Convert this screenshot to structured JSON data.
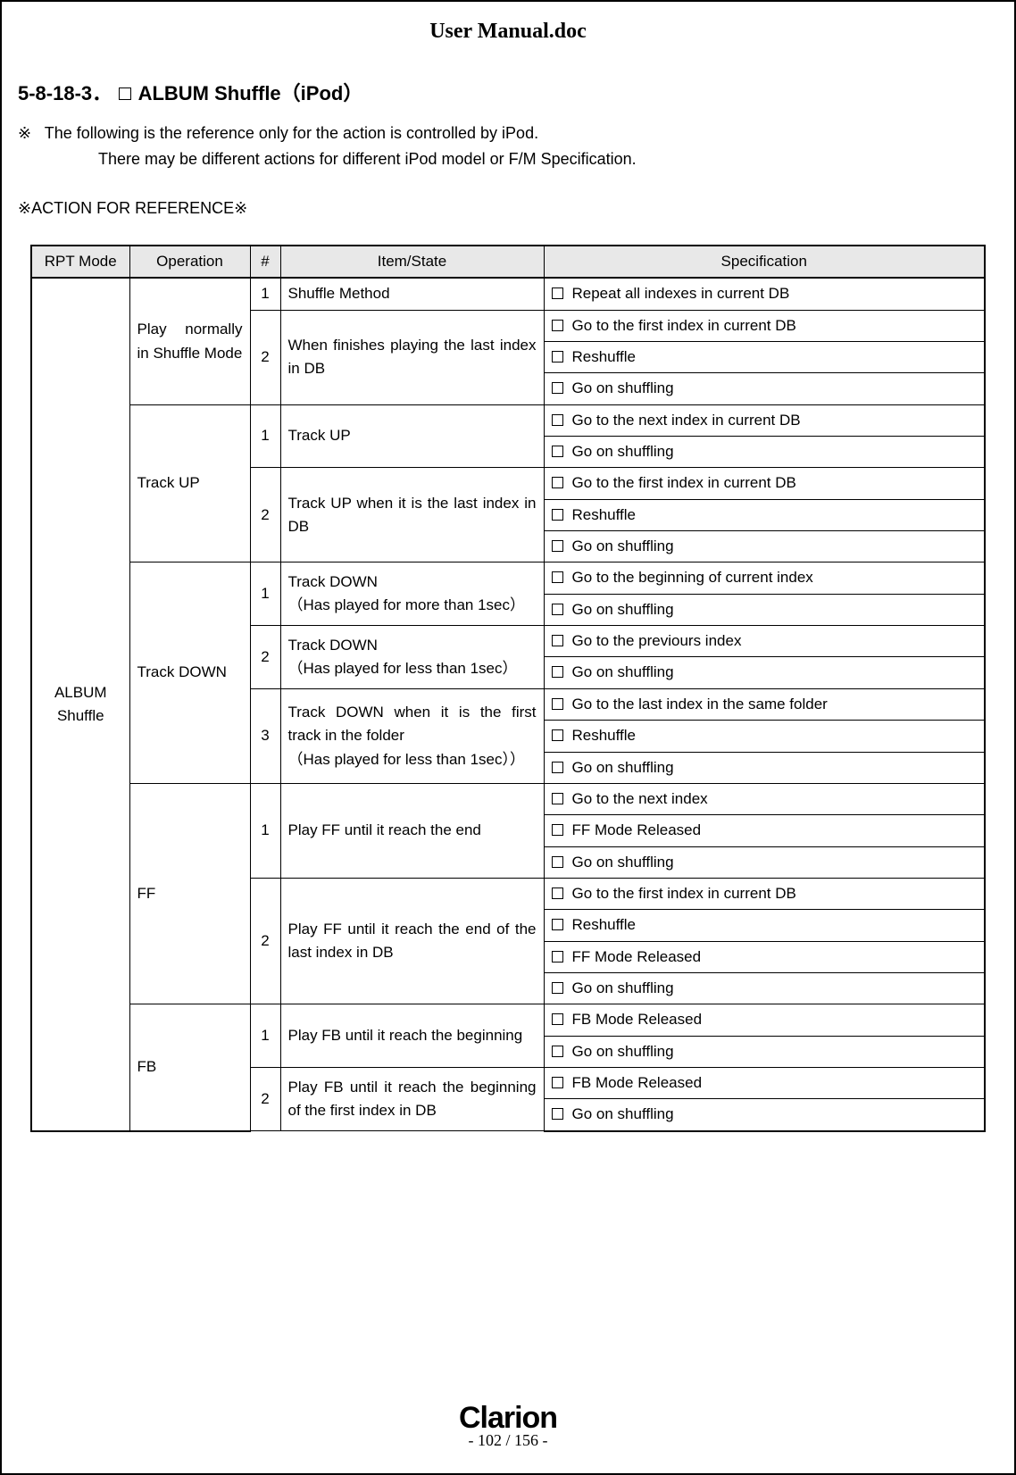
{
  "doc_title": "User Manual.doc",
  "section": {
    "number": "5-8-18-3．",
    "title_before_box": "",
    "title_after_box": "ALBUM  Shuffle（iPod）"
  },
  "notes": {
    "prefix": "※",
    "line1": "The following is the reference only for the action is controlled by iPod.",
    "line2": "There may be different actions for different iPod model or F/M Specification."
  },
  "action_ref": "※ACTION FOR REFERENCE※",
  "headers": {
    "rpt": "RPT Mode",
    "op": "Operation",
    "num": "#",
    "item": "Item/State",
    "spec": "Specification"
  },
  "rpt_mode": "ALBUM Shuffle",
  "groups": [
    {
      "op": "Play normally in Shuffle Mode",
      "rows": [
        {
          "num": "1",
          "item": "Shuffle Method",
          "specs": [
            "Repeat all indexes in current DB"
          ]
        },
        {
          "num": "2",
          "item": "When finishes playing the last index in DB",
          "specs": [
            "Go to the first index in current DB",
            "Reshuffle",
            "Go on shuffling"
          ]
        }
      ]
    },
    {
      "op": "Track UP",
      "rows": [
        {
          "num": "1",
          "item": "Track UP",
          "specs": [
            "Go to the next index in current DB",
            "Go on shuffling"
          ]
        },
        {
          "num": "2",
          "item": "Track UP when it is the last index in  DB",
          "specs": [
            "Go to the first index in current DB",
            "Reshuffle",
            "Go on shuffling"
          ]
        }
      ]
    },
    {
      "op": "Track DOWN",
      "rows": [
        {
          "num": "1",
          "item": "Track DOWN\n（Has played for more than 1sec）",
          "specs": [
            "Go to the beginning of current index",
            "Go on shuffling"
          ]
        },
        {
          "num": "2",
          "item": "Track DOWN\n（Has played for less than 1sec）",
          "specs": [
            "Go to the previours index",
            "Go on shuffling"
          ]
        },
        {
          "num": "3",
          "item": "Track DOWN when it is the first track in the folder\n（Has played for less than 1sec））",
          "specs": [
            "Go to the last index in the same folder",
            "Reshuffle",
            "Go on shuffling"
          ]
        }
      ]
    },
    {
      "op": "FF",
      "rows": [
        {
          "num": "1",
          "item": "Play FF until it reach the end",
          "specs": [
            "Go to the next index",
            "FF Mode Released",
            "Go on shuffling"
          ]
        },
        {
          "num": "2",
          "item": "Play FF until it reach the end of the last index in DB",
          "specs": [
            "Go to the first index in current DB",
            "Reshuffle",
            "FF Mode Released",
            "Go on shuffling"
          ]
        }
      ]
    },
    {
      "op": "FB",
      "rows": [
        {
          "num": "1",
          "item": "Play FB until it reach the beginning",
          "specs": [
            "FB Mode Released",
            "Go on shuffling"
          ]
        },
        {
          "num": "2",
          "item": "Play FB until it reach the beginning of the first index in DB",
          "specs": [
            "FB Mode Released",
            "Go on shuffling"
          ]
        }
      ]
    }
  ],
  "footer": {
    "brand": "Clarion",
    "page": "- 102 / 156 -"
  }
}
